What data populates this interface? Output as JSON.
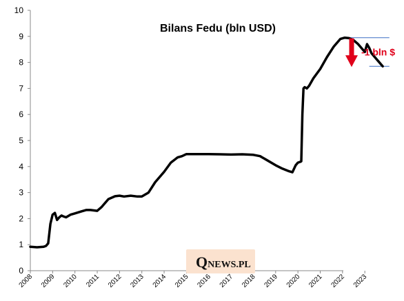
{
  "chart_data": {
    "type": "line",
    "title": "Bilans Fedu (bln USD)",
    "xlabel": "",
    "ylabel": "",
    "xlim": [
      2008,
      2024.2
    ],
    "ylim": [
      0,
      10
    ],
    "y_ticks": [
      "0",
      "1",
      "2",
      "3",
      "4",
      "5",
      "6",
      "7",
      "8",
      "9",
      "10"
    ],
    "x_ticks": [
      "2008",
      "2009",
      "2010",
      "2011",
      "2012",
      "2013",
      "2014",
      "2015",
      "2016",
      "2017",
      "2018",
      "2019",
      "2020",
      "2021",
      "2022",
      "2023"
    ],
    "grid": false,
    "series": [
      {
        "name": "",
        "color": "#000000",
        "x": [
          2008.0,
          2008.3,
          2008.6,
          2008.7,
          2008.8,
          2008.9,
          2009.0,
          2009.1,
          2009.2,
          2009.3,
          2009.4,
          2009.5,
          2009.6,
          2009.8,
          2010.0,
          2010.3,
          2010.5,
          2010.7,
          2011.0,
          2011.2,
          2011.5,
          2011.8,
          2012.0,
          2012.2,
          2012.5,
          2012.8,
          2013.0,
          2013.3,
          2013.6,
          2014.0,
          2014.3,
          2014.6,
          2014.8,
          2015.0,
          2015.3,
          2015.6,
          2016.0,
          2016.5,
          2017.0,
          2017.5,
          2018.0,
          2018.3,
          2018.6,
          2019.0,
          2019.3,
          2019.6,
          2019.75,
          2019.9,
          2020.0,
          2020.1,
          2020.15,
          2020.2,
          2020.25,
          2020.3,
          2020.4,
          2020.5,
          2020.7,
          2021.0,
          2021.3,
          2021.6,
          2021.9,
          2022.1,
          2022.3,
          2022.5,
          2022.7,
          2022.9,
          2023.0,
          2023.1,
          2023.2,
          2023.3,
          2023.45,
          2023.6,
          2023.8
        ],
        "values": [
          0.92,
          0.9,
          0.92,
          0.95,
          1.05,
          1.8,
          2.15,
          2.22,
          1.95,
          2.05,
          2.12,
          2.08,
          2.05,
          2.15,
          2.2,
          2.28,
          2.33,
          2.33,
          2.3,
          2.45,
          2.75,
          2.86,
          2.88,
          2.85,
          2.88,
          2.85,
          2.85,
          3.0,
          3.4,
          3.8,
          4.15,
          4.35,
          4.4,
          4.48,
          4.48,
          4.48,
          4.48,
          4.47,
          4.46,
          4.47,
          4.45,
          4.4,
          4.25,
          4.05,
          3.92,
          3.82,
          3.78,
          4.05,
          4.15,
          4.18,
          4.2,
          6.0,
          7.0,
          7.05,
          7.0,
          7.1,
          7.4,
          7.75,
          8.2,
          8.6,
          8.9,
          8.95,
          8.93,
          8.85,
          8.7,
          8.5,
          8.4,
          8.7,
          8.55,
          8.35,
          8.2,
          8.05,
          7.85
        ]
      }
    ],
    "annotations": [
      {
        "text": "-1 bln $",
        "color": "#e0001a",
        "from": 8.95,
        "to": 7.85
      }
    ],
    "reference_lines": [
      {
        "y": 8.95,
        "x_from": 2022.05,
        "x_to": 2024.1,
        "color": "#3a6fc4"
      },
      {
        "y": 7.85,
        "x_from": 2023.2,
        "x_to": 2024.1,
        "color": "#3a6fc4"
      }
    ]
  },
  "watermark": {
    "first_letter": "Q",
    "rest": "NEWS.PL",
    "background": "#fbe2cf"
  }
}
